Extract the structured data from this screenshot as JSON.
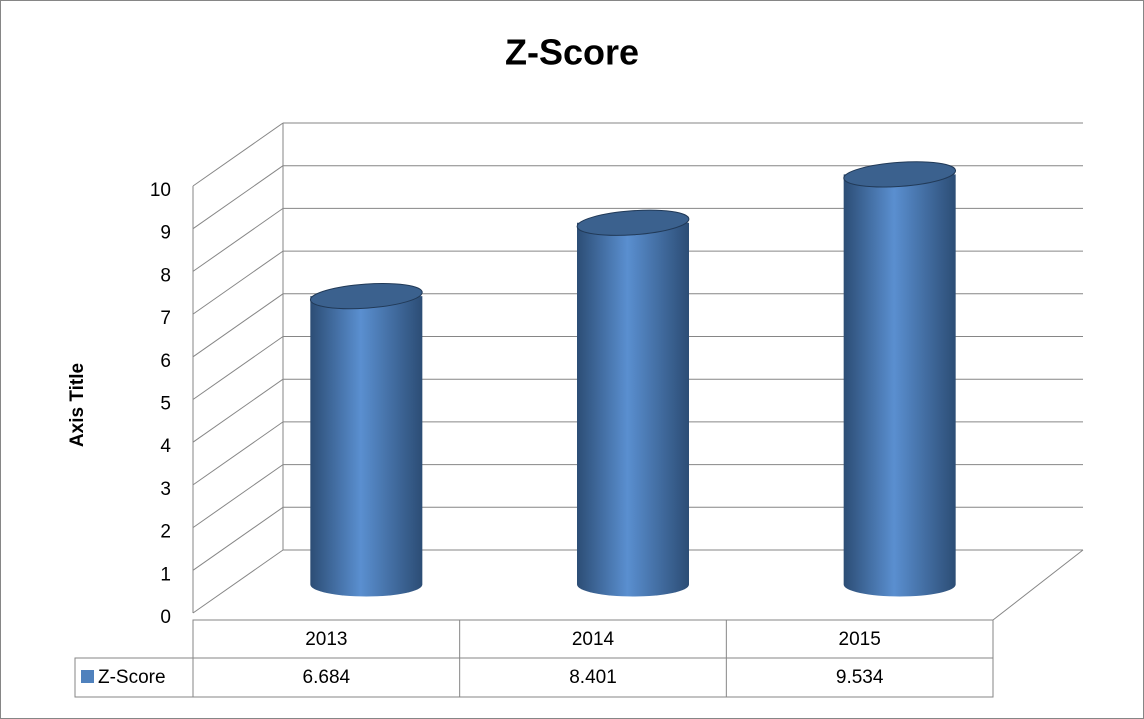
{
  "chart_data": {
    "type": "bar3d",
    "title": "Z-Score",
    "y_axis_label": "Axis Title",
    "categories": [
      "2013",
      "2014",
      "2015"
    ],
    "series": [
      {
        "name": "Z-Score",
        "color": "#4f81bd",
        "values": [
          6.684,
          8.401,
          9.534
        ]
      }
    ],
    "ylim": [
      0,
      10
    ],
    "yticks": [
      0,
      1,
      2,
      3,
      4,
      5,
      6,
      7,
      8,
      9,
      10
    ],
    "grid": true,
    "data_table": true
  }
}
